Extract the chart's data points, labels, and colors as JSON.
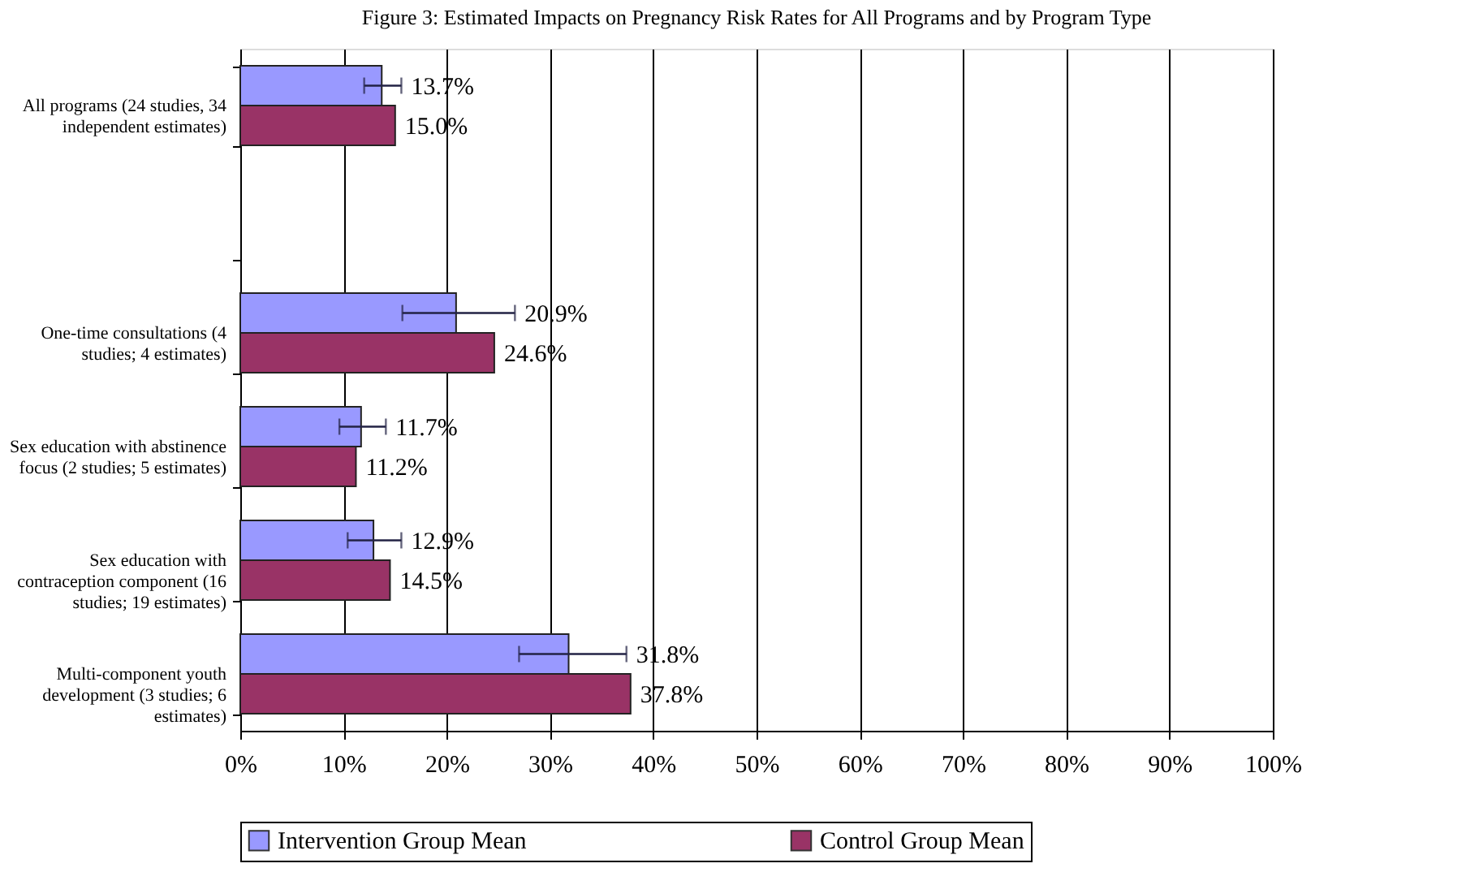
{
  "chart_data": {
    "type": "bar",
    "orientation": "horizontal",
    "title": "Figure 3:  Estimated Impacts on Pregnancy Risk Rates for All Programs and by Program Type",
    "categories": [
      "All programs (24 studies, 34 independent estimates)",
      null,
      "One-time consultations (4 studies; 4 estimates)",
      "Sex education with abstinence focus (2 studies; 5 estimates)",
      "Sex education with contraception component (16 studies; 19 estimates)",
      "Multi-component youth development (3 studies; 6 estimates)"
    ],
    "series": [
      {
        "name": "Intervention Group Mean",
        "color": "#9999ff",
        "values": [
          13.7,
          null,
          20.9,
          11.7,
          12.9,
          31.8
        ],
        "value_labels": [
          "13.7%",
          null,
          "20.9%",
          "11.7%",
          "12.9%",
          "31.8%"
        ],
        "errors": [
          [
            12.0,
            15.6
          ],
          null,
          [
            15.7,
            26.6
          ],
          [
            9.6,
            14.1
          ],
          [
            10.4,
            15.6
          ],
          [
            27.0,
            37.4
          ]
        ]
      },
      {
        "name": "Control Group Mean",
        "color": "#993366",
        "values": [
          15.0,
          null,
          24.6,
          11.2,
          14.5,
          37.8
        ],
        "value_labels": [
          "15.0%",
          null,
          "24.6%",
          "11.2%",
          "14.5%",
          "37.8%"
        ]
      }
    ],
    "xlim": [
      0,
      100
    ],
    "xticks": [
      {
        "value": 0,
        "label": "0%"
      },
      {
        "value": 10,
        "label": "10%"
      },
      {
        "value": 20,
        "label": "20%"
      },
      {
        "value": 30,
        "label": "30%"
      },
      {
        "value": 40,
        "label": "40%"
      },
      {
        "value": 50,
        "label": "50%"
      },
      {
        "value": 60,
        "label": "60%"
      },
      {
        "value": 70,
        "label": "70%"
      },
      {
        "value": 80,
        "label": "80%"
      },
      {
        "value": 90,
        "label": "90%"
      },
      {
        "value": 100,
        "label": "100%"
      }
    ],
    "grid": "x",
    "legend": "bottom"
  }
}
